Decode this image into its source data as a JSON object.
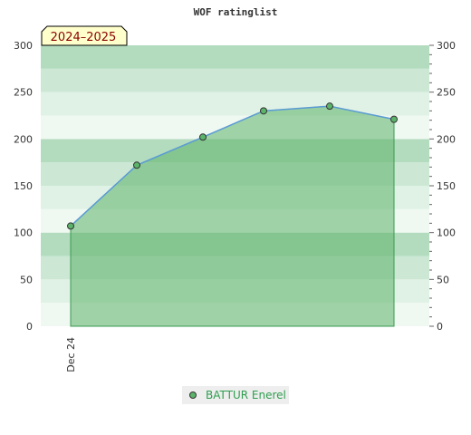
{
  "chart_data": {
    "type": "area",
    "title": "WOF ratinglist",
    "badge": "2024–2025",
    "x_tick_labels": [
      "Dec 24"
    ],
    "series": [
      {
        "name": "BATTUR Enerel",
        "values": [
          107,
          172,
          202,
          230,
          235,
          221
        ]
      }
    ],
    "ylim": [
      0,
      300
    ],
    "y_ticks": [
      0,
      50,
      100,
      150,
      200,
      250,
      300
    ],
    "y_axis_left": true,
    "y_axis_right": true,
    "legend_position": "bottom",
    "colors": {
      "line": "#5b9bd5",
      "fill": "#5cb36a",
      "fill_opacity": 0.55,
      "marker": "#5cb36a",
      "badge_bg": "#ffffcc",
      "badge_text": "#8b0000",
      "legend_text": "#2e9e4f",
      "stripe_dark": "#b3dcbf",
      "stripe_mid": "#cce8d5",
      "stripe_light": "#e0f2e5",
      "stripe_lightest": "#f0f8f2"
    }
  }
}
